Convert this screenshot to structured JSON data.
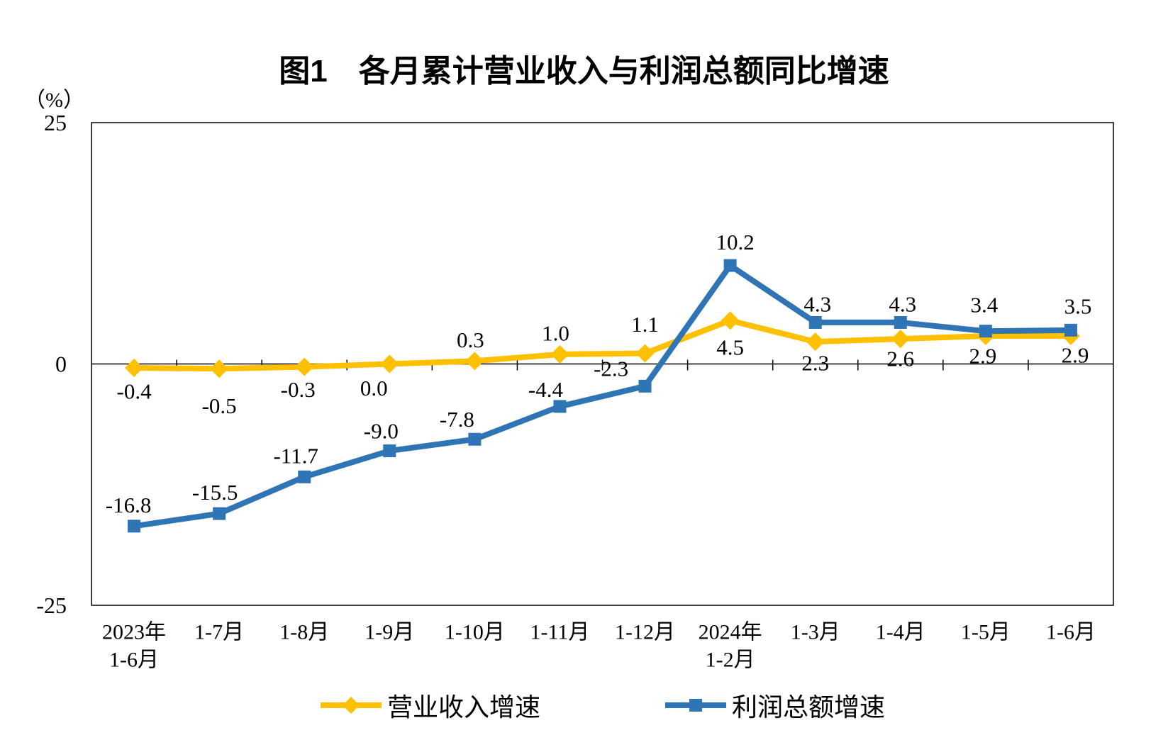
{
  "title": "图1　各月累计营业收入与利润总额同比增速",
  "y_axis_unit": "（%）",
  "chart_data": {
    "type": "line",
    "categories": [
      [
        "2023年",
        "1-6月"
      ],
      [
        "1-7月"
      ],
      [
        "1-8月"
      ],
      [
        "1-9月"
      ],
      [
        "1-10月"
      ],
      [
        "1-11月"
      ],
      [
        "1-12月"
      ],
      [
        "2024年",
        "1-2月"
      ],
      [
        "1-3月"
      ],
      [
        "1-4月"
      ],
      [
        "1-5月"
      ],
      [
        "1-6月"
      ]
    ],
    "series": [
      {
        "name": "营业收入增速",
        "color": "#FFC000",
        "marker": "diamond",
        "values": [
          -0.4,
          -0.5,
          -0.3,
          0.0,
          0.3,
          1.0,
          1.1,
          4.5,
          2.3,
          2.6,
          2.9,
          2.9
        ],
        "label_dx": [
          0,
          0,
          -9,
          -22,
          -6,
          -6,
          0,
          0,
          0,
          0,
          -4,
          6
        ],
        "label_dy": [
          33,
          52,
          32,
          34,
          -30,
          -30,
          -41,
          38,
          30,
          28,
          28,
          27
        ]
      },
      {
        "name": "利润总额增速",
        "color": "#2F75B6",
        "marker": "square",
        "values": [
          -16.8,
          -15.5,
          -11.7,
          -9.0,
          -7.8,
          -4.4,
          -2.3,
          10.2,
          4.3,
          4.3,
          3.4,
          3.5
        ],
        "label_dx": [
          -8,
          -6,
          -12,
          -12,
          -25,
          -20,
          -48,
          7,
          3,
          3,
          -2,
          10
        ],
        "label_dy": [
          -30,
          -30,
          -30,
          -28,
          -28,
          -24,
          -25,
          -33,
          -26,
          -26,
          -37,
          -34
        ]
      }
    ],
    "ylim": [
      -25,
      25
    ],
    "yticks": [
      25,
      0,
      -25
    ],
    "grid": "zero-line-only",
    "legend_position": "bottom",
    "axis_color": "#000000",
    "label_color": "#000000"
  }
}
